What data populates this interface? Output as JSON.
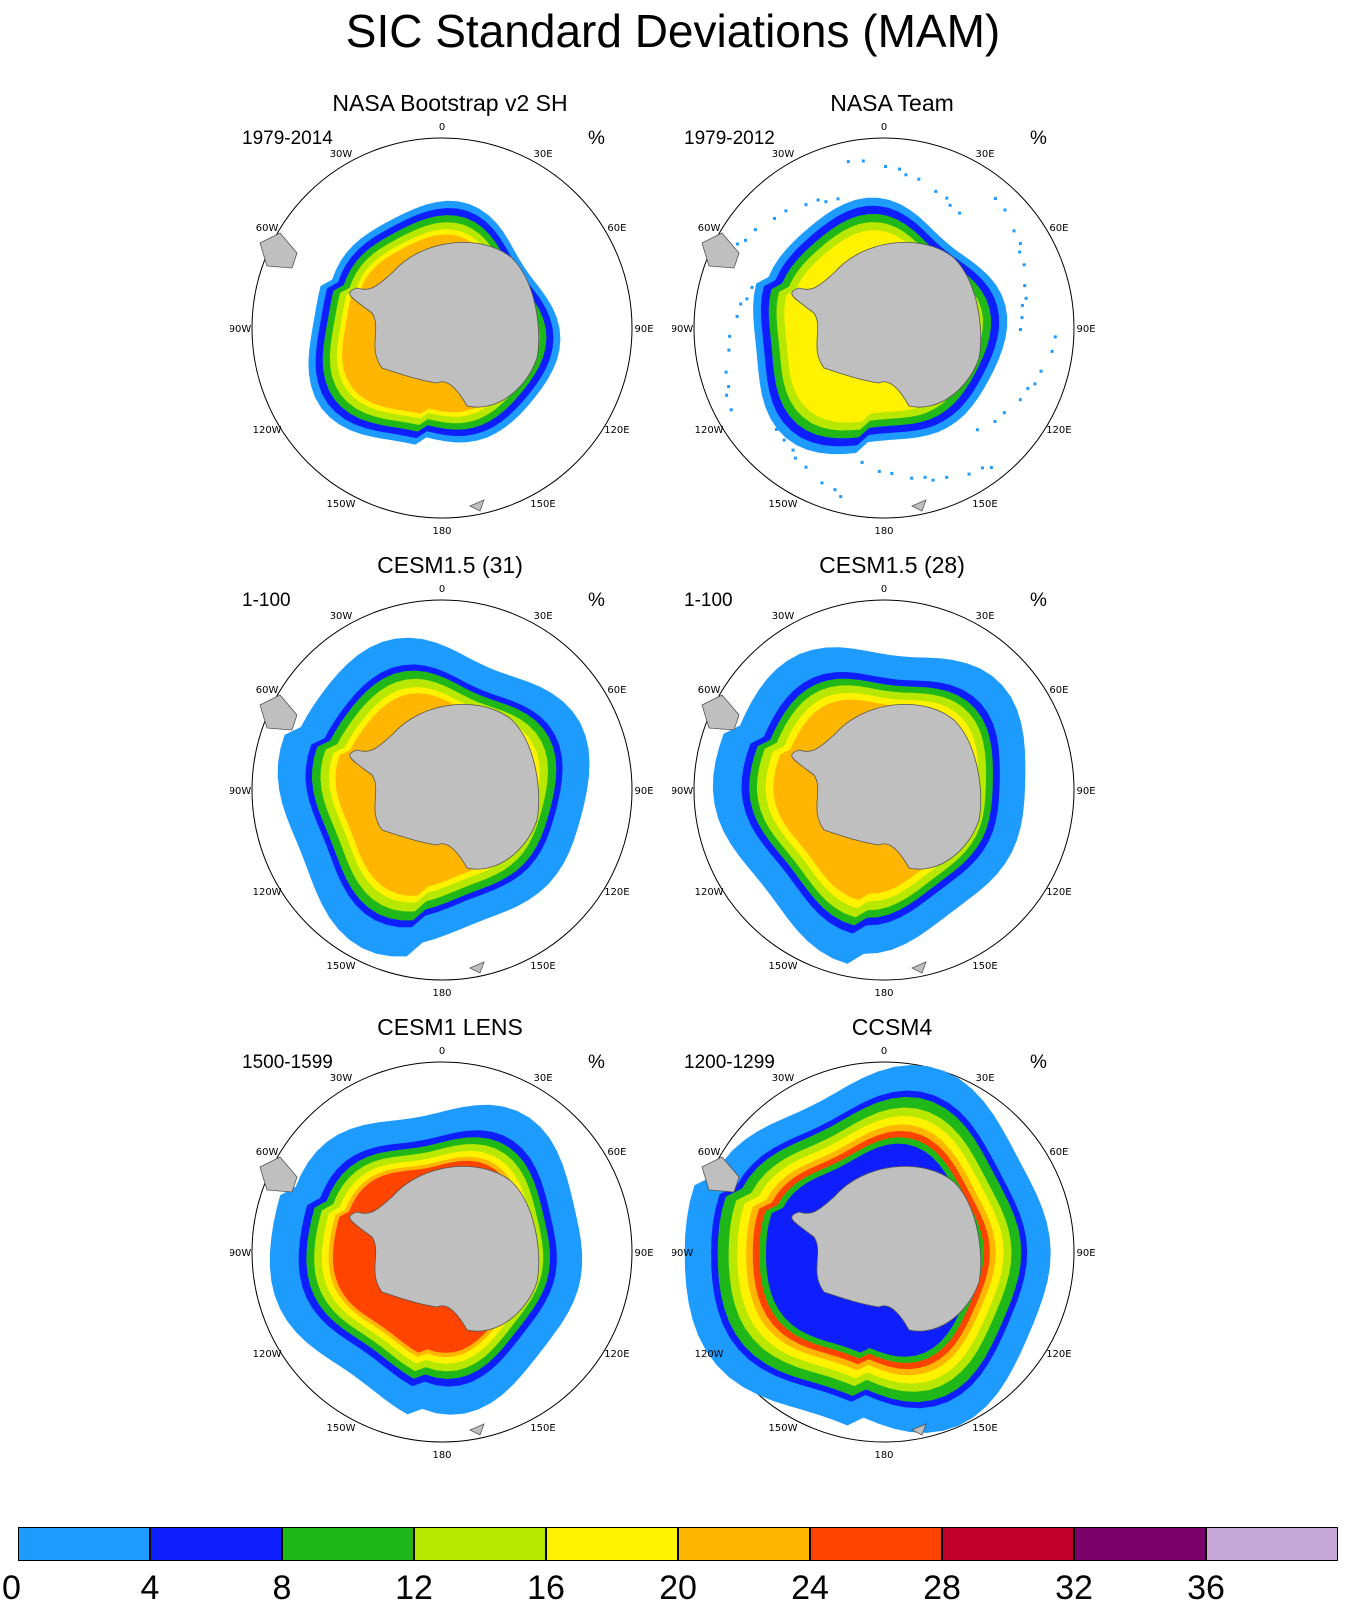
{
  "title": "SIC Standard Deviations (MAM)",
  "units": "%",
  "longitude_labels": [
    "0",
    "30E",
    "60E",
    "90E",
    "120E",
    "150E",
    "180",
    "150W",
    "120W",
    "90W",
    "60W",
    "30W"
  ],
  "colors": {
    "land": "#bfbfbf",
    "coast": "#555555",
    "levels": [
      "#1e9bff",
      "#0f1eff",
      "#20b818",
      "#b8e800",
      "#fff200",
      "#ffb600",
      "#ff4400",
      "#c0002a",
      "#7a006a",
      "#c7a8d8"
    ]
  },
  "panels": [
    {
      "title": "NASA Bootstrap v2 SH",
      "period": "1979-2014",
      "dominant_levels": [
        0,
        1,
        2,
        3,
        4,
        5
      ]
    },
    {
      "title": "NASA Team",
      "period": "1979-2012",
      "dominant_levels": [
        0,
        1,
        2,
        3,
        4
      ]
    },
    {
      "title": "CESM1.5 (31)",
      "period": "1-100",
      "dominant_levels": [
        0,
        1,
        2,
        3,
        4,
        5
      ]
    },
    {
      "title": "CESM1.5 (28)",
      "period": "1-100",
      "dominant_levels": [
        0,
        1,
        2,
        3,
        4,
        5
      ]
    },
    {
      "title": "CESM1 LENS",
      "period": "1500-1599",
      "dominant_levels": [
        0,
        1,
        2,
        3,
        4,
        5,
        6
      ]
    },
    {
      "title": "CCSM4",
      "period": "1200-1299",
      "dominant_levels": [
        0,
        1,
        2,
        3,
        4,
        5,
        6
      ]
    }
  ],
  "colorbar": {
    "labels": [
      "0",
      "4",
      "8",
      "12",
      "16",
      "20",
      "24",
      "28",
      "32",
      "36"
    ],
    "values": [
      0,
      4,
      8,
      12,
      16,
      20,
      24,
      28,
      32,
      36
    ]
  }
}
